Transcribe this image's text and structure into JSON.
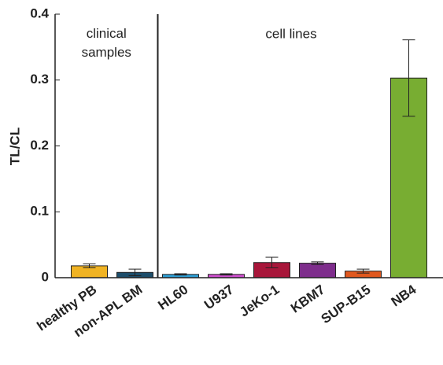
{
  "chart_data": {
    "type": "bar",
    "y_label": "TL/CL",
    "annotations": [
      "clinical\nsamples",
      "cell lines"
    ],
    "categories": [
      "healthy PB",
      "non-APL BM",
      "HL60",
      "U937",
      "JeKo-1",
      "KBM7",
      "SUP-B15",
      "NB4"
    ],
    "values": [
      0.018,
      0.008,
      0.005,
      0.005,
      0.023,
      0.022,
      0.01,
      0.303
    ],
    "errors": [
      0.003,
      0.005,
      0.001,
      0.001,
      0.008,
      0.002,
      0.003,
      0.058
    ],
    "colors": [
      "#f0b323",
      "#1d4e6b",
      "#2e9fd6",
      "#d04fd0",
      "#a8163a",
      "#7e2d8c",
      "#e0581e",
      "#78ad32"
    ],
    "ylim": [
      0,
      0.4
    ],
    "yticks": [
      0,
      0.1,
      0.2,
      0.3,
      0.4
    ]
  }
}
